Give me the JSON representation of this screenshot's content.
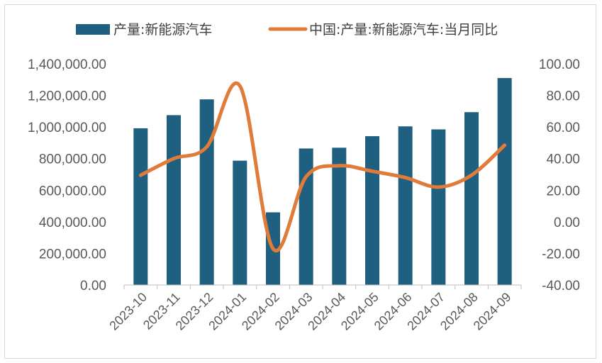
{
  "chart_data": {
    "type": "bar",
    "categories": [
      "2023-10",
      "2023-11",
      "2023-12",
      "2024-01",
      "2024-02",
      "2024-03",
      "2024-04",
      "2024-05",
      "2024-06",
      "2024-07",
      "2024-08",
      "2024-09"
    ],
    "series": [
      {
        "name": "产量:新能源汽车",
        "type": "bar",
        "axis": "left",
        "color": "#1f5f7f",
        "values": [
          992000,
          1075000,
          1175000,
          787000,
          460000,
          864000,
          869000,
          942000,
          1004000,
          985000,
          1094000,
          1310000
        ]
      },
      {
        "name": "中国:产量:新能源汽车:当月同比",
        "type": "line",
        "axis": "right",
        "color": "#e07b39",
        "values": [
          29.5,
          40.0,
          47.5,
          86.0,
          -17.0,
          28.5,
          35.5,
          32.0,
          28.0,
          22.0,
          29.5,
          48.5
        ]
      }
    ],
    "y_left": {
      "ylim": [
        0,
        1400000
      ],
      "ticks": [
        "0.00",
        "200,000.00",
        "400,000.00",
        "600,000.00",
        "800,000.00",
        "1,000,000.00",
        "1,200,000.00",
        "1,400,000.00"
      ]
    },
    "y_right": {
      "ylim": [
        -40,
        100
      ],
      "ticks": [
        "-40.00",
        "-20.00",
        "0.00",
        "20.00",
        "40.00",
        "60.00",
        "80.00",
        "100.00"
      ]
    },
    "grid": false,
    "legend_position": "top"
  }
}
